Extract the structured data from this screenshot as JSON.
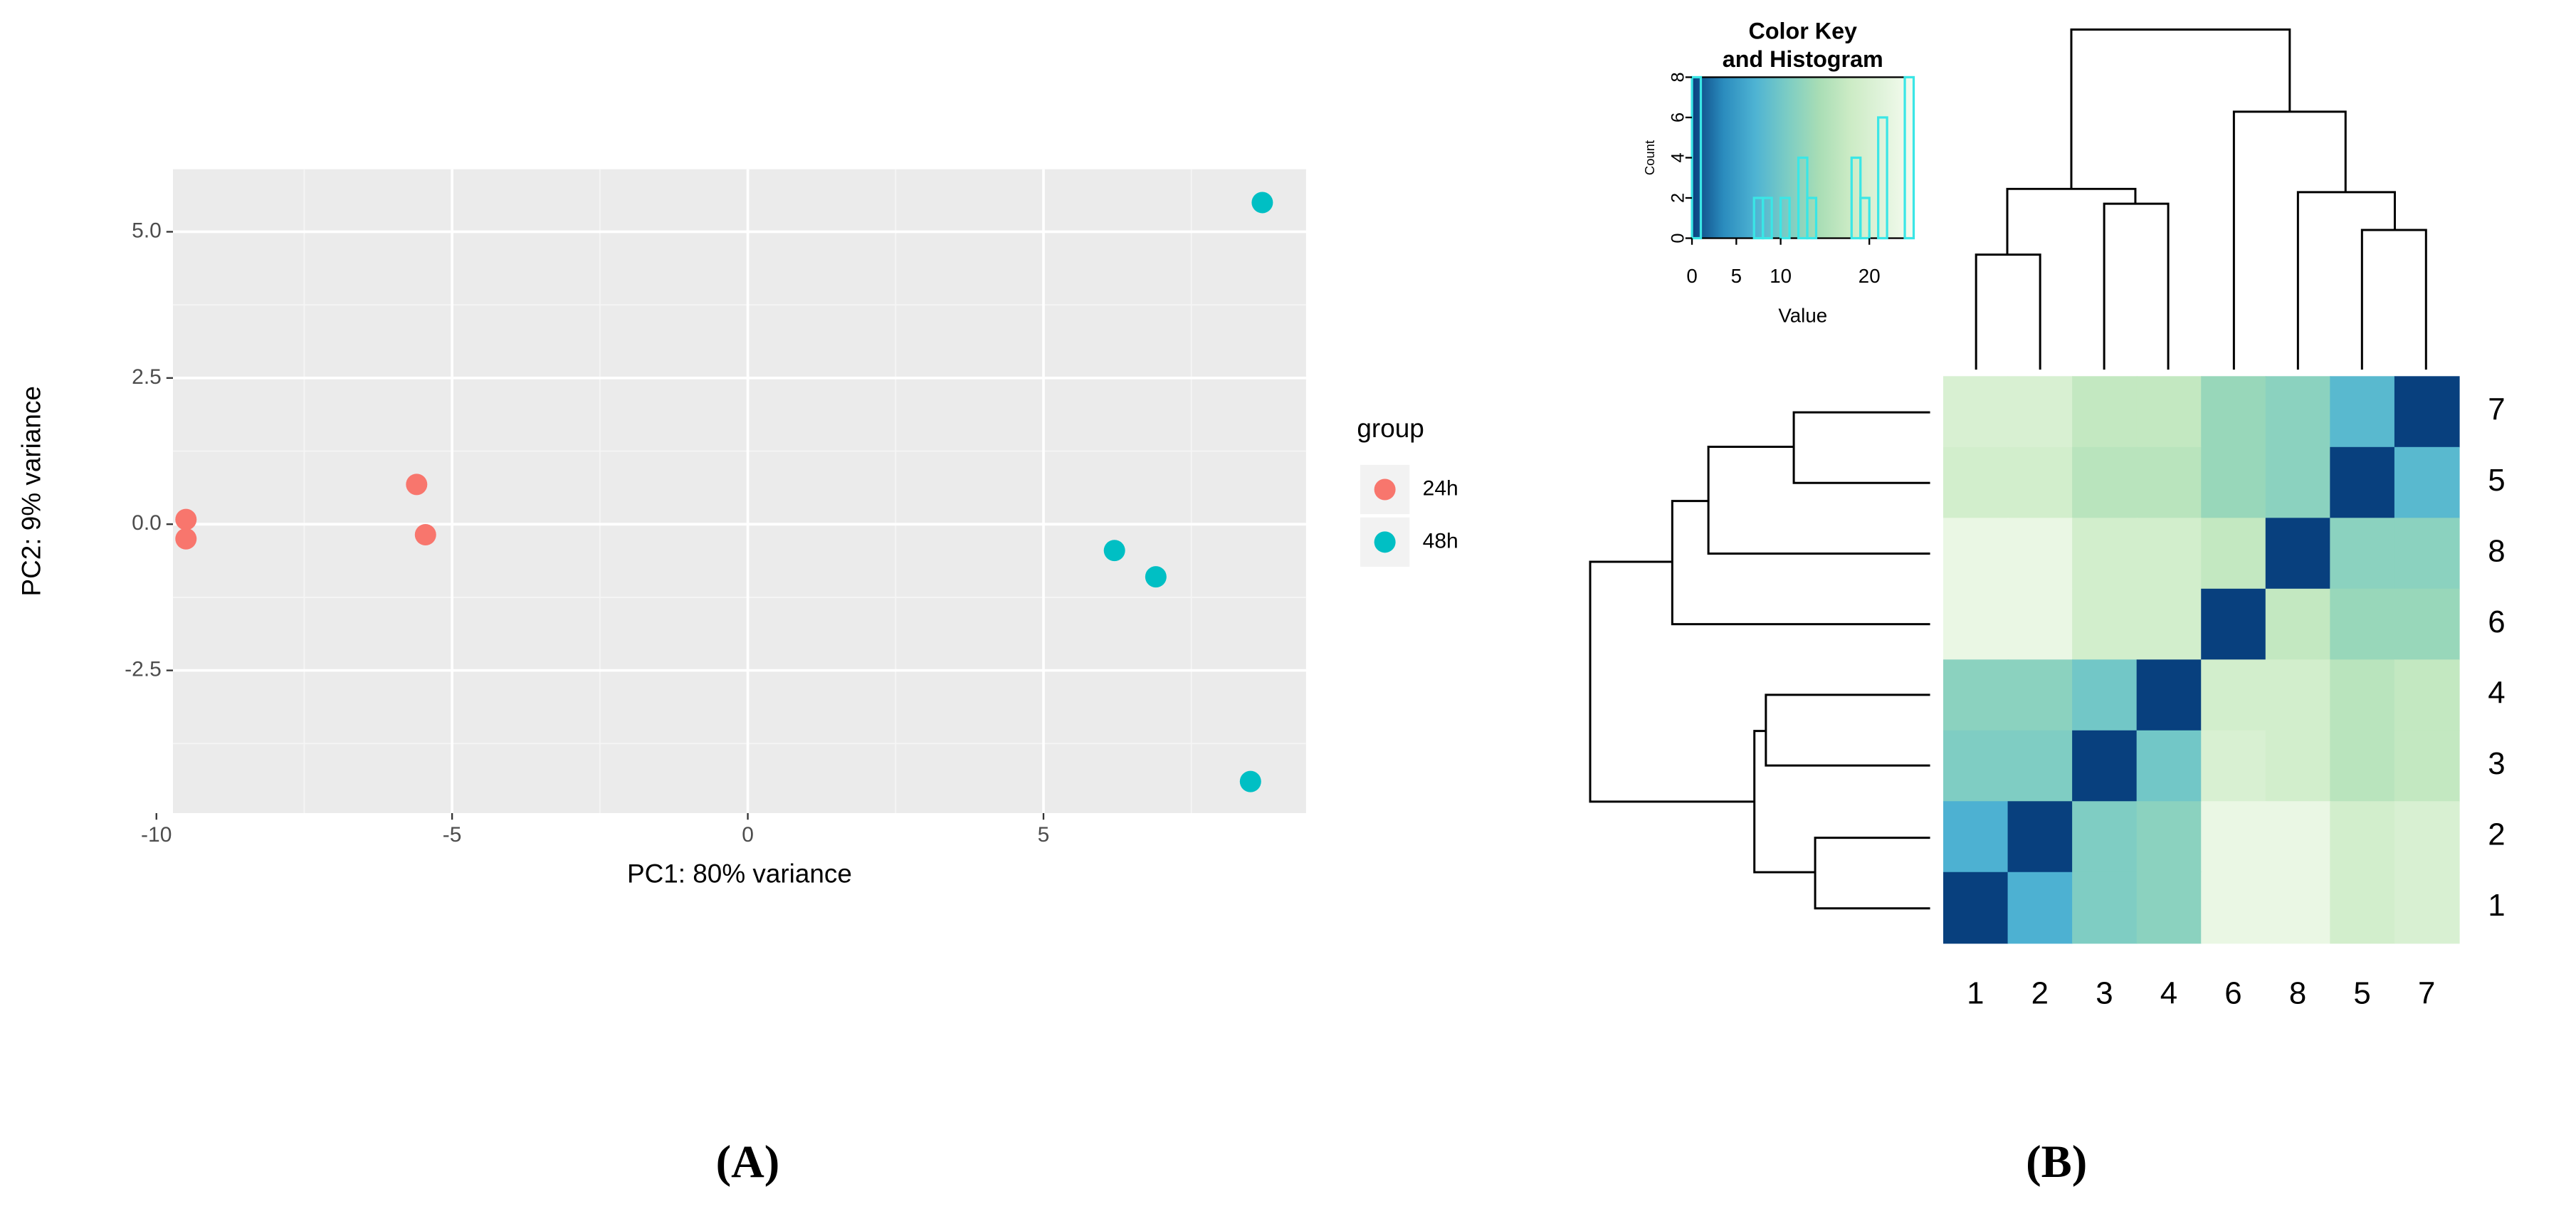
{
  "chart_data": [
    {
      "type": "scatter",
      "xlabel": "PC1: 80% variance",
      "ylabel": "PC2: 9% variance",
      "xlim": [
        -9.72,
        9.44
      ],
      "ylim": [
        -4.94,
        6.07
      ],
      "xticks": [
        -10,
        -5,
        0,
        5
      ],
      "yticks": [
        {
          "value": 5,
          "label": "5.0"
        },
        2.5,
        {
          "value": 0,
          "label": "0.0"
        },
        -2.5
      ],
      "grid": true,
      "legend_title": "group",
      "series": [
        {
          "name": "24h",
          "color": "#F8766D",
          "x": [
            -9.5,
            -9.5,
            -5.6,
            -5.45
          ],
          "y": [
            0.08,
            -0.25,
            0.68,
            -0.18
          ]
        },
        {
          "name": "48h",
          "color": "#00BFC4",
          "x": [
            8.7,
            6.2,
            6.9,
            8.5
          ],
          "y": [
            5.5,
            -0.45,
            -0.9,
            -4.4
          ]
        }
      ],
      "panel_label": "(A)"
    },
    {
      "type": "heatmap",
      "key_title": [
        "Color Key",
        "and Histogram"
      ],
      "key_xlabel": "Value",
      "key_ylabel": "Count",
      "zlim": [
        0,
        25
      ],
      "key_xticks": [
        0,
        5,
        10,
        20
      ],
      "key_ylim": [
        0,
        8
      ],
      "key_yticks": [
        0,
        2,
        4,
        6,
        8
      ],
      "colorscale": [
        "#08407e",
        "#2b8cbe",
        "#4eb3d3",
        "#7bccc4",
        "#a8ddb5",
        "#ccebc5",
        "#e0f3db",
        "#f7fcf0"
      ],
      "hist_color": "#3ae6e6",
      "bins": [
        0,
        1,
        2,
        3,
        4,
        5,
        6,
        7,
        8,
        9,
        10,
        11,
        12,
        13,
        14,
        15,
        16,
        17,
        18,
        19,
        20,
        21,
        22,
        23,
        24,
        25
      ],
      "counts": [
        8,
        0,
        0,
        0,
        0,
        0,
        0,
        2,
        2,
        0,
        2,
        0,
        4,
        2,
        0,
        0,
        0,
        0,
        4,
        2,
        0,
        6,
        0,
        0,
        8
      ],
      "rows": [
        "7",
        "5",
        "8",
        "6",
        "4",
        "3",
        "2",
        "1"
      ],
      "columns": [
        "1",
        "2",
        "3",
        "4",
        "6",
        "8",
        "5",
        "7"
      ],
      "values": [
        [
          20,
          20,
          17,
          17,
          13,
          12,
          8,
          0
        ],
        [
          19,
          19,
          16,
          16,
          13,
          12,
          0,
          8
        ],
        [
          23,
          23,
          19,
          19,
          17,
          0,
          12,
          12
        ],
        [
          23,
          23,
          19,
          19,
          0,
          17,
          13,
          13
        ],
        [
          12,
          12,
          10,
          0,
          19,
          19,
          16,
          17
        ],
        [
          11,
          11,
          0,
          10,
          20,
          19,
          16,
          17
        ],
        [
          7,
          0,
          11,
          12,
          23,
          23,
          19,
          20
        ],
        [
          0,
          7,
          11,
          12,
          23,
          23,
          19,
          20
        ]
      ],
      "panel_label": "(B)"
    }
  ]
}
